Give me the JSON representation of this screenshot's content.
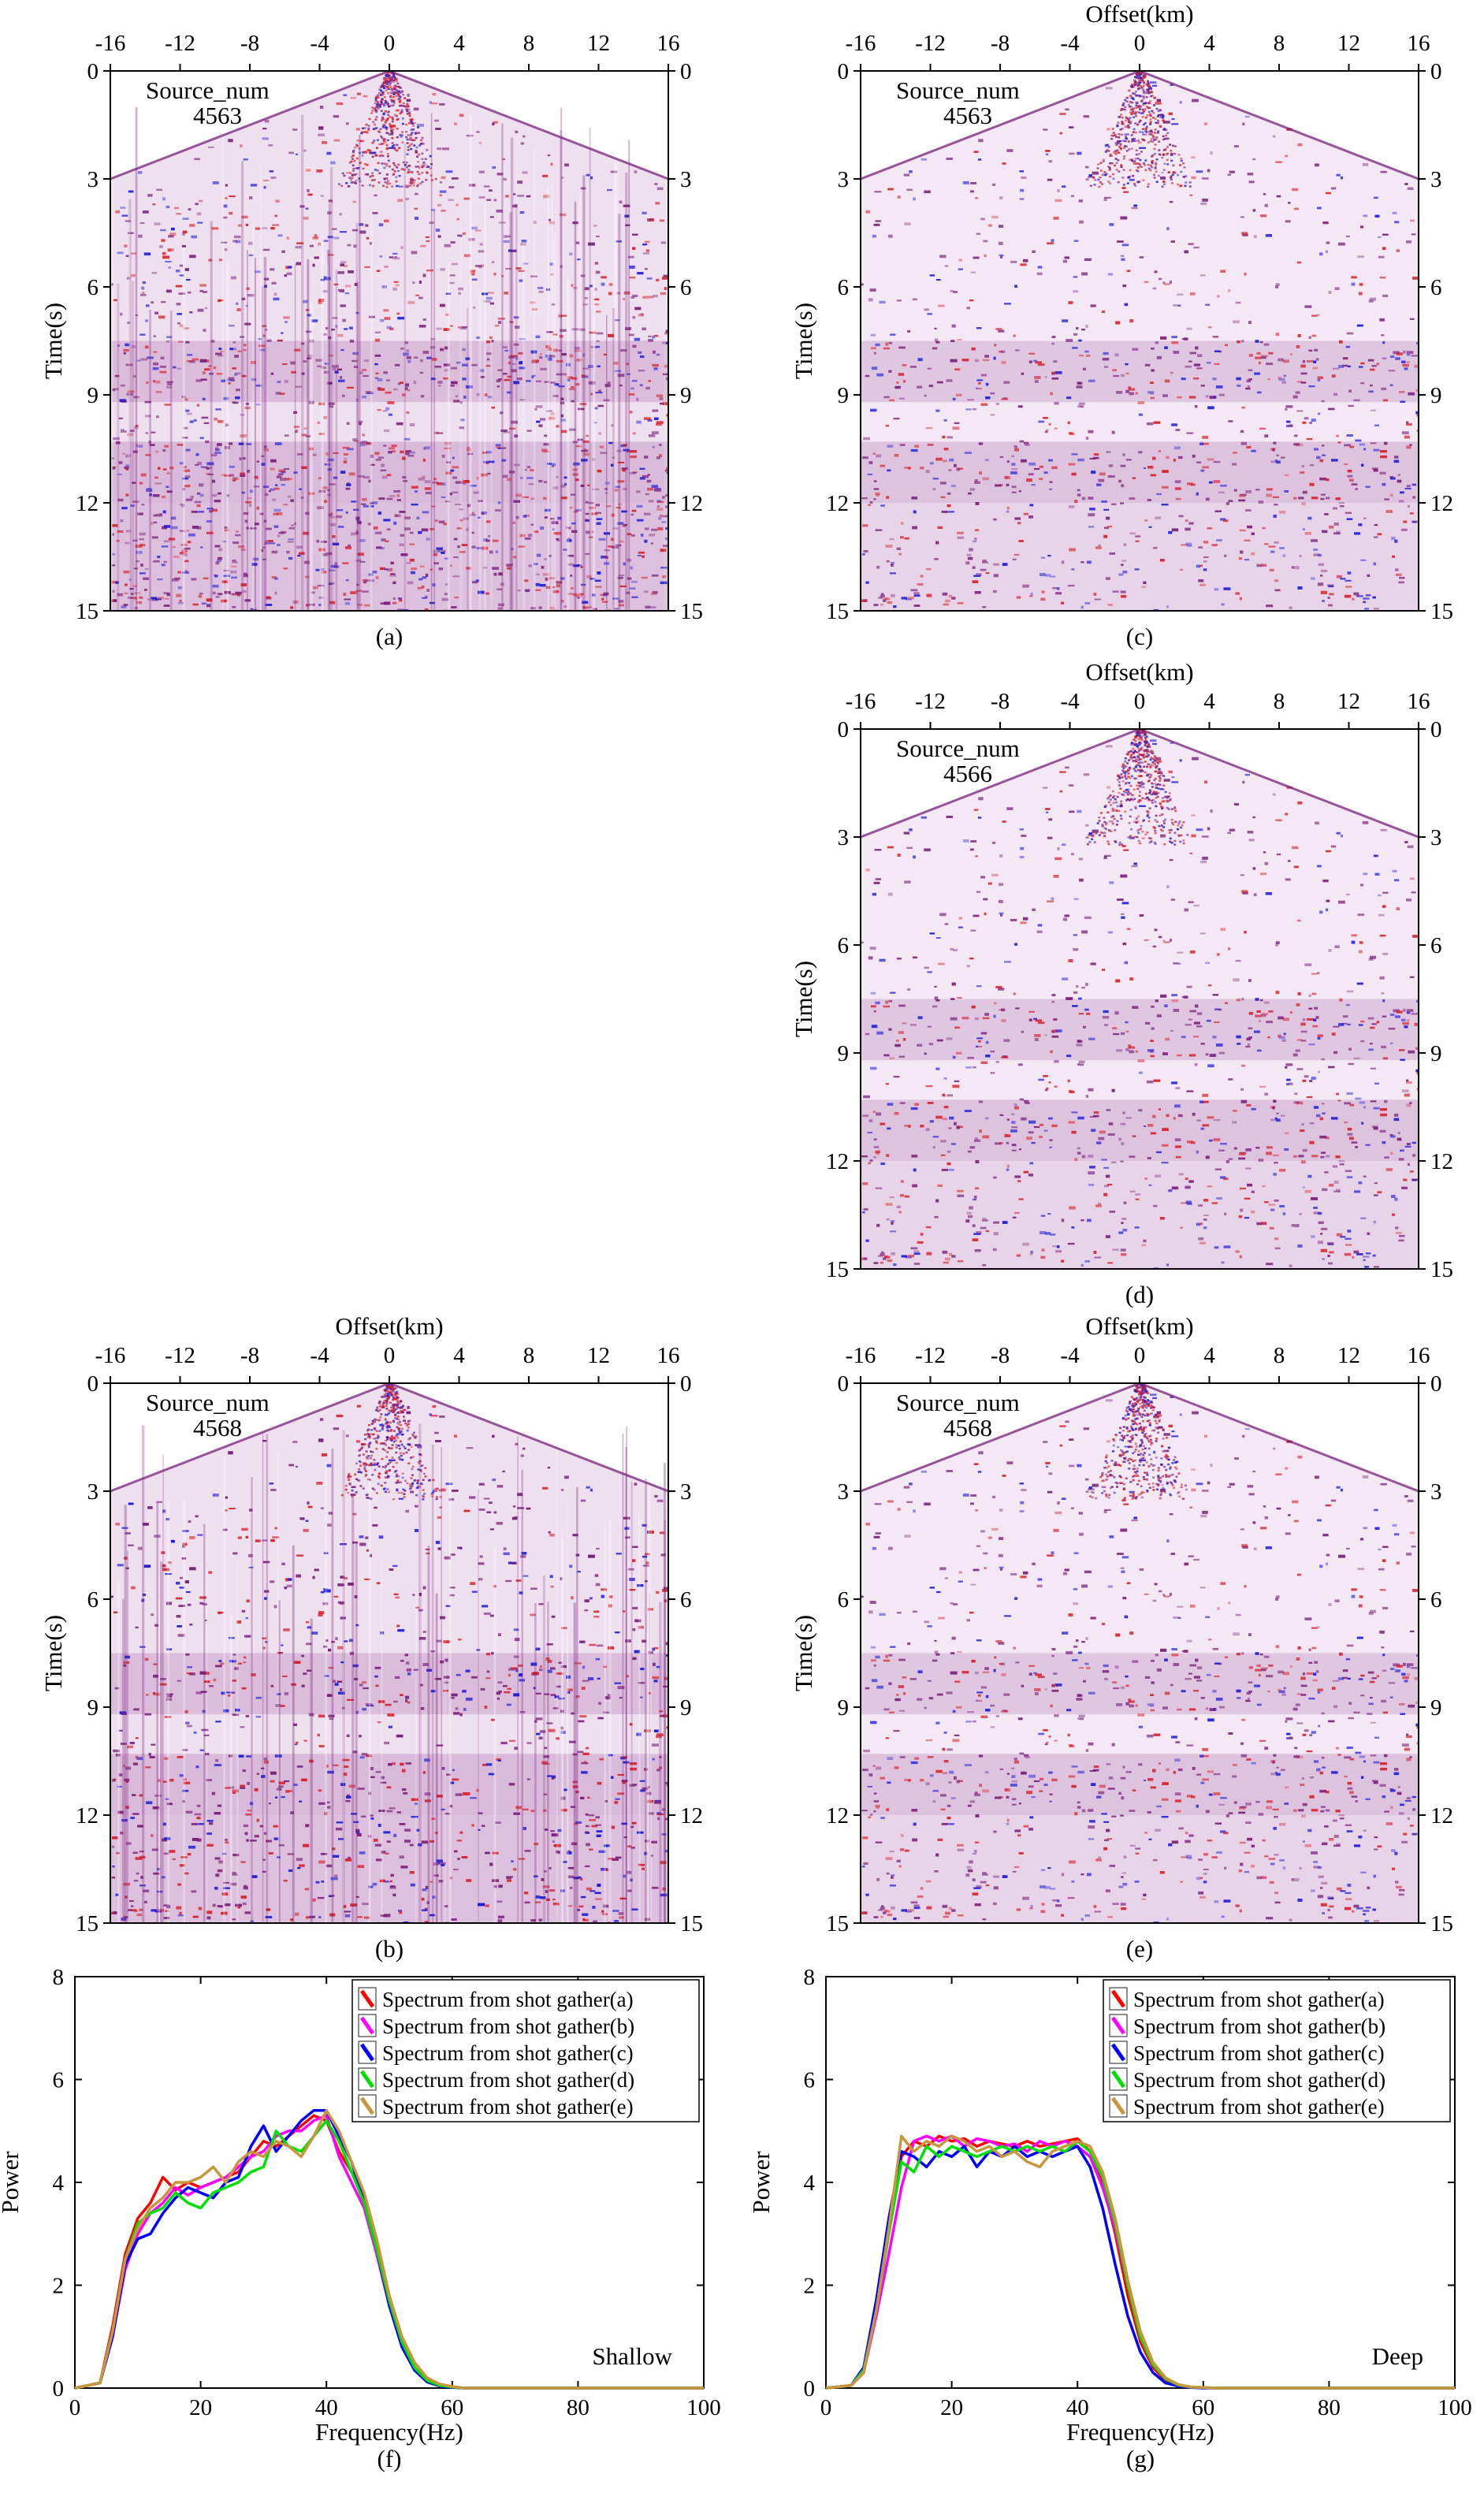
{
  "colors": {
    "red": "#d8202a",
    "blue": "#1a1adc",
    "purple": "#7a1f7a",
    "spec_a": "#ff0000",
    "spec_b": "#ff00ff",
    "spec_c": "#0000ff",
    "spec_d": "#00e000",
    "spec_e": "#c8963c"
  },
  "gathers": [
    {
      "id": "a",
      "caption": "(a)",
      "source_label": "Source_num",
      "source_num": "4563",
      "show_xlabel": false,
      "texture": "noisy"
    },
    {
      "id": "c",
      "caption": "(c)",
      "source_label": "Source_num",
      "source_num": "4563",
      "show_xlabel": true,
      "texture": "clean"
    },
    {
      "id": "d",
      "caption": "(d)",
      "source_label": "Source_num",
      "source_num": "4566",
      "show_xlabel": true,
      "texture": "clean"
    },
    {
      "id": "b",
      "caption": "(b)",
      "source_label": "Source_num",
      "source_num": "4568",
      "show_xlabel": true,
      "texture": "noisy"
    },
    {
      "id": "e",
      "caption": "(e)",
      "source_label": "Source_num",
      "source_num": "4568",
      "show_xlabel": true,
      "texture": "clean"
    }
  ],
  "gather_axes": {
    "xlabel": "Offset(km)",
    "ylabel": "Time(s)",
    "xticks": [
      -16,
      -12,
      -8,
      -4,
      0,
      4,
      8,
      12,
      16
    ],
    "yticks": [
      0,
      3,
      6,
      9,
      12,
      15
    ],
    "xlim": [
      -16,
      16
    ],
    "ylim": [
      0,
      15
    ]
  },
  "chart_data": [
    {
      "type": "line",
      "caption": "(f)",
      "annotation": "Shallow",
      "xlabel": "Frequency(Hz)",
      "ylabel": "Power",
      "xlim": [
        0,
        100
      ],
      "ylim": [
        0,
        8
      ],
      "xticks": [
        0,
        20,
        40,
        60,
        80,
        100
      ],
      "yticks": [
        0,
        2,
        4,
        6,
        8
      ],
      "legend_position": "top-right",
      "series": [
        {
          "name": "Spectrum from shot gather(a)",
          "color": "#ff0000",
          "x": [
            0,
            4,
            6,
            8,
            10,
            12,
            14,
            16,
            18,
            20,
            22,
            24,
            26,
            28,
            30,
            32,
            34,
            36,
            38,
            40,
            42,
            44,
            46,
            48,
            50,
            52,
            54,
            56,
            58,
            60,
            62,
            100
          ],
          "y": [
            0,
            0.1,
            1.2,
            2.6,
            3.3,
            3.6,
            4.1,
            3.85,
            4.0,
            3.9,
            4.0,
            4.1,
            4.2,
            4.5,
            4.8,
            4.7,
            4.9,
            5.1,
            5.3,
            5.2,
            4.6,
            4.2,
            3.7,
            2.8,
            1.7,
            0.9,
            0.4,
            0.15,
            0.05,
            0.02,
            0,
            0
          ]
        },
        {
          "name": "Spectrum from shot gather(b)",
          "color": "#ff00ff",
          "x": [
            0,
            4,
            6,
            8,
            10,
            12,
            14,
            16,
            18,
            20,
            22,
            24,
            26,
            28,
            30,
            32,
            34,
            36,
            38,
            40,
            42,
            44,
            46,
            48,
            50,
            52,
            54,
            56,
            58,
            60,
            62,
            100
          ],
          "y": [
            0,
            0.1,
            1.0,
            2.3,
            3.0,
            3.4,
            3.6,
            3.9,
            3.75,
            3.9,
            4.0,
            4.1,
            4.3,
            4.5,
            4.6,
            4.9,
            5.0,
            5.0,
            5.2,
            5.3,
            4.5,
            4.0,
            3.5,
            2.6,
            1.6,
            0.85,
            0.4,
            0.15,
            0.05,
            0.02,
            0,
            0
          ]
        },
        {
          "name": "Spectrum from shot gather(c)",
          "color": "#0000ff",
          "x": [
            0,
            4,
            6,
            8,
            10,
            12,
            14,
            16,
            18,
            20,
            22,
            24,
            26,
            28,
            30,
            32,
            34,
            36,
            38,
            40,
            42,
            44,
            46,
            48,
            50,
            52,
            54,
            56,
            58,
            60,
            62,
            100
          ],
          "y": [
            0,
            0.1,
            1.0,
            2.4,
            2.9,
            3.0,
            3.4,
            3.7,
            3.9,
            3.8,
            3.7,
            4.0,
            4.1,
            4.7,
            5.1,
            4.6,
            4.9,
            5.2,
            5.4,
            5.4,
            4.9,
            4.4,
            3.6,
            2.7,
            1.6,
            0.8,
            0.35,
            0.12,
            0.04,
            0.01,
            0,
            0
          ]
        },
        {
          "name": "Spectrum from shot gather(d)",
          "color": "#00e000",
          "x": [
            0,
            4,
            6,
            8,
            10,
            12,
            14,
            16,
            18,
            20,
            22,
            24,
            26,
            28,
            30,
            32,
            34,
            36,
            38,
            40,
            42,
            44,
            46,
            48,
            50,
            52,
            54,
            56,
            58,
            60,
            62,
            100
          ],
          "y": [
            0,
            0.1,
            1.1,
            2.5,
            3.2,
            3.4,
            3.5,
            3.8,
            3.6,
            3.5,
            3.8,
            3.9,
            4.0,
            4.2,
            4.3,
            5.0,
            4.7,
            4.6,
            4.9,
            5.2,
            4.8,
            4.2,
            3.6,
            2.7,
            1.7,
            0.9,
            0.4,
            0.15,
            0.05,
            0.02,
            0,
            0
          ]
        },
        {
          "name": "Spectrum from shot gather(e)",
          "color": "#c8963c",
          "x": [
            0,
            4,
            6,
            8,
            10,
            12,
            14,
            16,
            18,
            20,
            22,
            24,
            26,
            28,
            30,
            32,
            34,
            36,
            38,
            40,
            42,
            44,
            46,
            48,
            50,
            52,
            54,
            56,
            58,
            60,
            62,
            100
          ],
          "y": [
            0,
            0.1,
            1.1,
            2.5,
            3.1,
            3.5,
            3.7,
            4.0,
            4.0,
            4.1,
            4.3,
            4.0,
            4.4,
            4.6,
            4.5,
            4.8,
            4.7,
            4.5,
            4.9,
            5.4,
            5.0,
            4.4,
            3.8,
            2.9,
            1.8,
            1.0,
            0.5,
            0.2,
            0.08,
            0.03,
            0,
            0
          ]
        }
      ]
    },
    {
      "type": "line",
      "caption": "(g)",
      "annotation": "Deep",
      "xlabel": "Frequency(Hz)",
      "ylabel": "Power",
      "xlim": [
        0,
        100
      ],
      "ylim": [
        0,
        8
      ],
      "xticks": [
        0,
        20,
        40,
        60,
        80,
        100
      ],
      "yticks": [
        0,
        2,
        4,
        6,
        8
      ],
      "legend_position": "top-right",
      "series": [
        {
          "name": "Spectrum from shot gather(a)",
          "color": "#ff0000",
          "x": [
            0,
            4,
            6,
            8,
            10,
            12,
            14,
            16,
            18,
            20,
            22,
            24,
            26,
            28,
            30,
            32,
            34,
            36,
            38,
            40,
            42,
            44,
            46,
            48,
            50,
            52,
            54,
            56,
            58,
            60,
            62,
            100
          ],
          "y": [
            0,
            0.05,
            0.3,
            1.6,
            3.2,
            4.5,
            4.8,
            4.7,
            4.9,
            4.8,
            4.85,
            4.7,
            4.8,
            4.75,
            4.7,
            4.8,
            4.7,
            4.75,
            4.8,
            4.85,
            4.6,
            4.0,
            3.0,
            1.8,
            0.9,
            0.4,
            0.15,
            0.05,
            0.02,
            0.01,
            0,
            0
          ]
        },
        {
          "name": "Spectrum from shot gather(b)",
          "color": "#ff00ff",
          "x": [
            0,
            4,
            6,
            8,
            10,
            12,
            14,
            16,
            18,
            20,
            22,
            24,
            26,
            28,
            30,
            32,
            34,
            36,
            38,
            40,
            42,
            44,
            46,
            48,
            50,
            52,
            54,
            56,
            58,
            60,
            62,
            100
          ],
          "y": [
            0,
            0.05,
            0.3,
            1.4,
            2.6,
            3.9,
            4.8,
            4.9,
            4.8,
            4.9,
            4.7,
            4.85,
            4.8,
            4.7,
            4.75,
            4.6,
            4.8,
            4.7,
            4.8,
            4.7,
            4.5,
            3.9,
            3.1,
            2.0,
            1.0,
            0.45,
            0.18,
            0.06,
            0.02,
            0.01,
            0,
            0
          ]
        },
        {
          "name": "Spectrum from shot gather(c)",
          "color": "#0000ff",
          "x": [
            0,
            4,
            6,
            8,
            10,
            12,
            14,
            16,
            18,
            20,
            22,
            24,
            26,
            28,
            30,
            32,
            34,
            36,
            38,
            40,
            42,
            44,
            46,
            48,
            50,
            52,
            54,
            56,
            58,
            60,
            62,
            100
          ],
          "y": [
            0,
            0.05,
            0.4,
            1.7,
            3.3,
            4.6,
            4.5,
            4.3,
            4.6,
            4.5,
            4.7,
            4.3,
            4.6,
            4.5,
            4.7,
            4.5,
            4.6,
            4.5,
            4.6,
            4.7,
            4.3,
            3.5,
            2.4,
            1.4,
            0.7,
            0.3,
            0.1,
            0.04,
            0.01,
            0,
            0,
            0
          ]
        },
        {
          "name": "Spectrum from shot gather(d)",
          "color": "#00e000",
          "x": [
            0,
            4,
            6,
            8,
            10,
            12,
            14,
            16,
            18,
            20,
            22,
            24,
            26,
            28,
            30,
            32,
            34,
            36,
            38,
            40,
            42,
            44,
            46,
            48,
            50,
            52,
            54,
            56,
            58,
            60,
            62,
            100
          ],
          "y": [
            0,
            0.05,
            0.35,
            1.5,
            3.0,
            4.4,
            4.2,
            4.7,
            4.5,
            4.7,
            4.6,
            4.5,
            4.6,
            4.7,
            4.6,
            4.7,
            4.6,
            4.7,
            4.6,
            4.8,
            4.6,
            4.1,
            3.2,
            2.0,
            1.0,
            0.45,
            0.18,
            0.06,
            0.02,
            0.01,
            0,
            0
          ]
        },
        {
          "name": "Spectrum from shot gather(e)",
          "color": "#c8963c",
          "x": [
            0,
            4,
            6,
            8,
            10,
            12,
            14,
            16,
            18,
            20,
            22,
            24,
            26,
            28,
            30,
            32,
            34,
            36,
            38,
            40,
            42,
            44,
            46,
            48,
            50,
            52,
            54,
            56,
            58,
            60,
            62,
            100
          ],
          "y": [
            0,
            0.05,
            0.3,
            1.5,
            3.1,
            4.9,
            4.6,
            4.8,
            4.7,
            4.9,
            4.8,
            4.6,
            4.7,
            4.5,
            4.6,
            4.4,
            4.3,
            4.6,
            4.7,
            4.8,
            4.7,
            4.2,
            3.3,
            2.1,
            1.1,
            0.5,
            0.2,
            0.07,
            0.02,
            0.01,
            0,
            0
          ]
        }
      ]
    }
  ]
}
